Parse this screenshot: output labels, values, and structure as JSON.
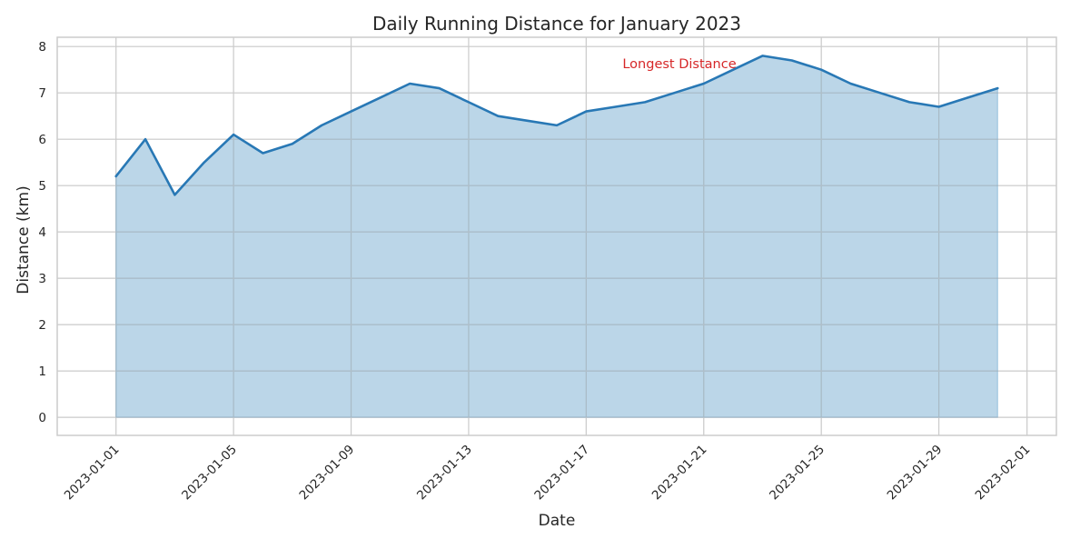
{
  "chart_data": {
    "type": "area",
    "title": "Daily Running Distance for January 2023",
    "xlabel": "Date",
    "ylabel": "Distance (km)",
    "x": [
      "2023-01-01",
      "2023-01-02",
      "2023-01-03",
      "2023-01-04",
      "2023-01-05",
      "2023-01-06",
      "2023-01-07",
      "2023-01-08",
      "2023-01-09",
      "2023-01-10",
      "2023-01-11",
      "2023-01-12",
      "2023-01-13",
      "2023-01-14",
      "2023-01-15",
      "2023-01-16",
      "2023-01-17",
      "2023-01-18",
      "2023-01-19",
      "2023-01-20",
      "2023-01-21",
      "2023-01-22",
      "2023-01-23",
      "2023-01-24",
      "2023-01-25",
      "2023-01-26",
      "2023-01-27",
      "2023-01-28",
      "2023-01-29",
      "2023-01-30",
      "2023-01-31"
    ],
    "values": [
      5.2,
      6.0,
      4.8,
      5.5,
      6.1,
      5.7,
      5.9,
      6.3,
      6.6,
      6.9,
      7.2,
      7.1,
      6.8,
      6.5,
      6.4,
      6.3,
      6.6,
      6.7,
      6.8,
      7.0,
      7.2,
      7.5,
      7.8,
      7.7,
      7.5,
      7.2,
      7.0,
      6.8,
      6.7,
      6.9,
      7.1
    ],
    "xticks": [
      "2023-01-01",
      "2023-01-05",
      "2023-01-09",
      "2023-01-13",
      "2023-01-17",
      "2023-01-21",
      "2023-01-25",
      "2023-01-29",
      "2023-02-01"
    ],
    "yticks": [
      0,
      1,
      2,
      3,
      4,
      5,
      6,
      7,
      8
    ],
    "xlim": [
      "2022-12-30",
      "2023-02-02"
    ],
    "ylim": [
      -0.39,
      8.2
    ],
    "grid": true,
    "colors": {
      "line": "#2878b5",
      "fill": "#bad6ea",
      "annotation": "#d62728",
      "grid": "#cccccc",
      "spine": "#cccccc"
    },
    "annotation": {
      "text": "Longest Distance",
      "x": "2023-01-23",
      "y": 7.8
    }
  }
}
